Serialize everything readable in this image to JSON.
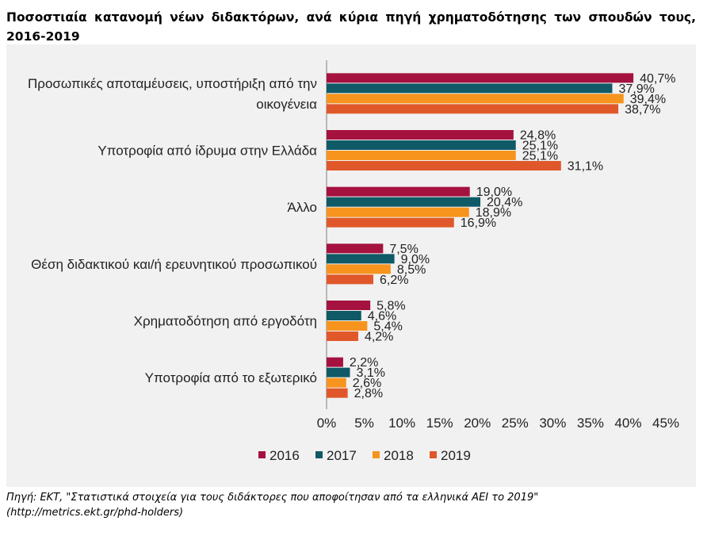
{
  "page": {
    "title": "Ποσοστιαία κατανομή νέων διδακτόρων, ανά κύρια πηγή χρηματοδότησης των σπουδών τους, 2016-2019",
    "source_line1": "Πηγή: ΕΚΤ, \"Στατιστικά στοιχεία για τους διδάκτορες που αποφοίτησαν από τα ελληνικά ΑΕΙ το 2019\"",
    "source_line2": "(http://metrics.ekt.gr/phd-holders)"
  },
  "chart_data": {
    "type": "bar",
    "orientation": "horizontal",
    "title": "Ποσοστιαία κατανομή νέων διδακτόρων, ανά κύρια πηγή χρηματοδότησης των σπουδών τους, 2016-2019",
    "categories": [
      [
        "Προσωπικές αποταμέυσεις, υποστήριξη από την",
        "οικογένεια"
      ],
      [
        "Υποτροφία από ίδρυμα στην Ελλάδα"
      ],
      [
        "Άλλο"
      ],
      [
        "Θέση διδακτικού και/ή ερευνητικού προσωπικού"
      ],
      [
        "Χρηματοδότηση από εργοδότη"
      ],
      [
        "Υποτροφία από το εξωτερικό"
      ]
    ],
    "series": [
      {
        "name": "2016",
        "color": "#a5123f",
        "values": [
          40.7,
          24.8,
          19.0,
          7.5,
          5.8,
          2.2
        ],
        "labels": [
          "40,7%",
          "24,8%",
          "19,0%",
          "7,5%",
          "5,8%",
          "2,2%"
        ]
      },
      {
        "name": "2017",
        "color": "#0f5a66",
        "values": [
          37.9,
          25.1,
          20.4,
          9.0,
          4.6,
          3.1
        ],
        "labels": [
          "37,9%",
          "25,1%",
          "20,4%",
          "9,0%",
          "4,6%",
          "3,1%"
        ]
      },
      {
        "name": "2018",
        "color": "#f7941d",
        "values": [
          39.4,
          25.1,
          18.9,
          8.5,
          5.4,
          2.6
        ],
        "labels": [
          "39,4%",
          "25,1%",
          "18,9%",
          "8,5%",
          "5,4%",
          "2,6%"
        ]
      },
      {
        "name": "2019",
        "color": "#e0582a",
        "values": [
          38.7,
          31.1,
          16.9,
          6.2,
          4.2,
          2.8
        ],
        "labels": [
          "38,7%",
          "31,1%",
          "16,9%",
          "6,2%",
          "4,2%",
          "2,8%"
        ]
      }
    ],
    "xlim": [
      0,
      45
    ],
    "xticks": [
      "0%",
      "5%",
      "10%",
      "15%",
      "20%",
      "25%",
      "30%",
      "35%",
      "40%",
      "45%"
    ],
    "xlabel": "",
    "ylabel": "",
    "legend": "bottom",
    "grid": false
  }
}
